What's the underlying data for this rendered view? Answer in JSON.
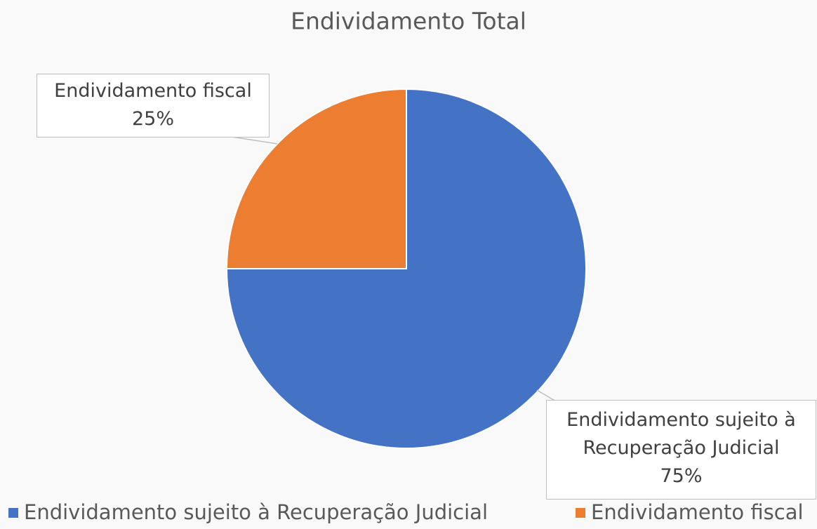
{
  "chart_data": {
    "type": "pie",
    "title": "Endividamento Total",
    "categories": [
      "Endividamento sujeito à Recuperação Judicial",
      "Endividamento fiscal"
    ],
    "values": [
      75,
      25
    ],
    "value_labels": [
      "75%",
      "25%"
    ],
    "colors": [
      "#4472c4",
      "#ed7d31"
    ],
    "legend": "bottom"
  }
}
